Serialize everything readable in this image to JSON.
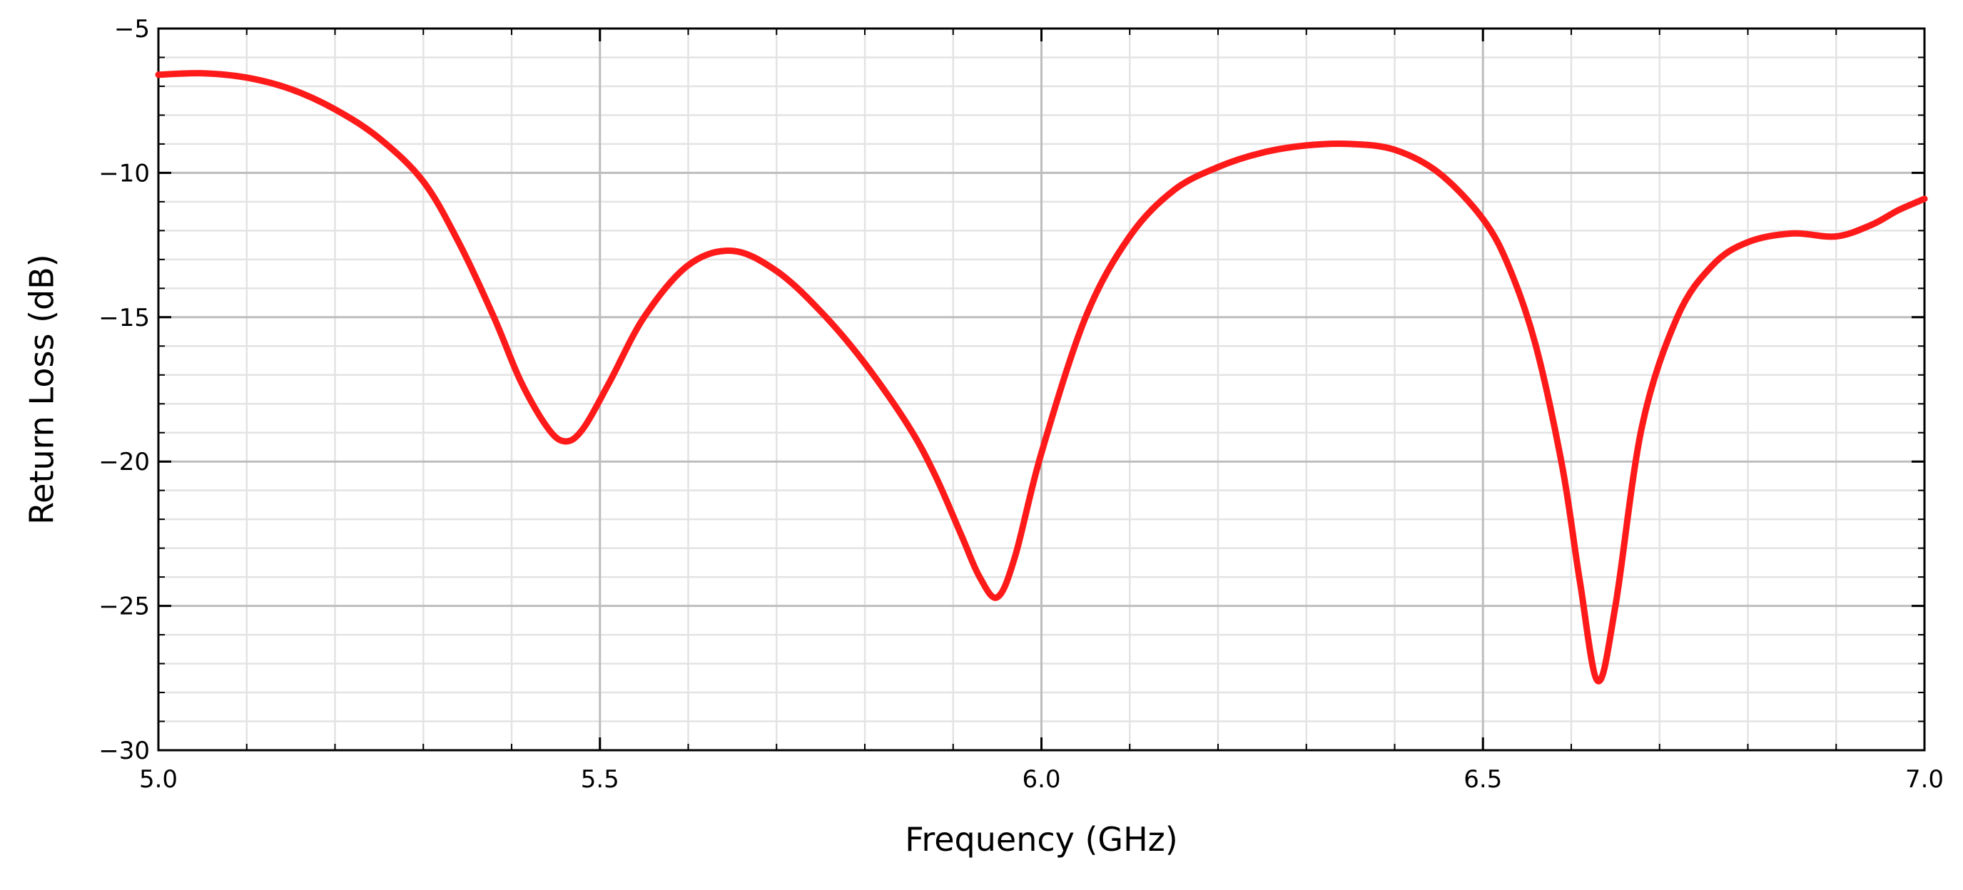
{
  "chart_data": {
    "type": "line",
    "title": "",
    "xlabel": "Frequency (GHz)",
    "ylabel": "Return Loss (dB)",
    "xlim": [
      5.0,
      7.0
    ],
    "ylim": [
      -30,
      -5
    ],
    "x_ticks": [
      5.0,
      5.5,
      6.0,
      6.5,
      7.0
    ],
    "x_tick_labels": [
      "5.0",
      "5.5",
      "6.0",
      "6.5",
      "7.0"
    ],
    "y_ticks": [
      -5,
      -10,
      -15,
      -20,
      -25,
      -30
    ],
    "y_tick_labels": [
      "−5",
      "−10",
      "−15",
      "−20",
      "−25",
      "−30"
    ],
    "x_minor_step": 0.1,
    "y_minor_step": 1,
    "grid": true,
    "series": [
      {
        "color": "#ff1a1a",
        "x": [
          5.0,
          5.05,
          5.1,
          5.15,
          5.2,
          5.25,
          5.3,
          5.34,
          5.38,
          5.41,
          5.44,
          5.46,
          5.48,
          5.51,
          5.55,
          5.6,
          5.65,
          5.7,
          5.75,
          5.8,
          5.85,
          5.88,
          5.91,
          5.93,
          5.95,
          5.97,
          6.0,
          6.05,
          6.1,
          6.15,
          6.2,
          6.25,
          6.3,
          6.35,
          6.4,
          6.45,
          6.5,
          6.53,
          6.56,
          6.59,
          6.61,
          6.63,
          6.65,
          6.68,
          6.72,
          6.76,
          6.8,
          6.85,
          6.9,
          6.94,
          6.97,
          7.0
        ],
        "y": [
          -6.6,
          -6.55,
          -6.7,
          -7.1,
          -7.8,
          -8.8,
          -10.3,
          -12.4,
          -15.0,
          -17.2,
          -18.8,
          -19.3,
          -18.9,
          -17.3,
          -15.0,
          -13.2,
          -12.7,
          -13.4,
          -14.8,
          -16.6,
          -18.8,
          -20.5,
          -22.6,
          -24.0,
          -24.7,
          -23.3,
          -19.7,
          -15.0,
          -12.2,
          -10.6,
          -9.8,
          -9.3,
          -9.05,
          -9.0,
          -9.2,
          -10.0,
          -11.6,
          -13.3,
          -16.0,
          -20.2,
          -24.2,
          -27.6,
          -25.0,
          -18.8,
          -15.0,
          -13.2,
          -12.4,
          -12.1,
          -12.2,
          -11.8,
          -11.3,
          -10.9
        ]
      }
    ]
  }
}
